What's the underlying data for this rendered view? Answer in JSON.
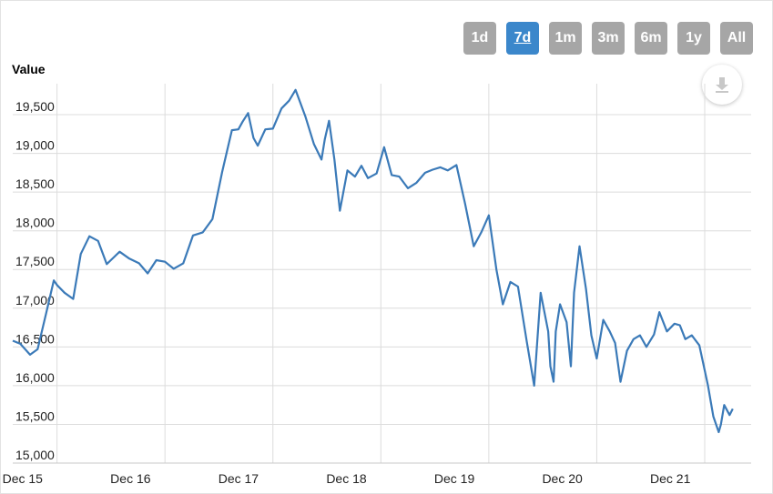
{
  "range_selector": {
    "buttons": [
      "1d",
      "7d",
      "1m",
      "3m",
      "6m",
      "1y",
      "All"
    ],
    "active": "7d",
    "active_color": "#3b87cb",
    "inactive_color": "#a6a6a6"
  },
  "export": {
    "icon": "download-icon"
  },
  "chart_data": {
    "type": "line",
    "title": "",
    "ylabel": "Value",
    "xlabel": "",
    "ylim": [
      15000,
      19900
    ],
    "yticks": [
      15000,
      15500,
      16000,
      16500,
      17000,
      17500,
      18000,
      18500,
      19000,
      19500
    ],
    "ytick_labels": [
      "15,000",
      "15,500",
      "16,000",
      "16,500",
      "17,000",
      "17,500",
      "18,000",
      "18,500",
      "19,000",
      "19,500"
    ],
    "xlim": [
      -0.41,
      6.43
    ],
    "xticks": [
      0,
      1,
      2,
      3,
      4,
      5,
      6
    ],
    "xtick_labels": [
      "Dec 15",
      "Dec 16",
      "Dec 17",
      "Dec 18",
      "Dec 19",
      "Dec 20",
      "Dec 21"
    ],
    "grid": true,
    "line_color": "#3b7ab8",
    "series": [
      {
        "x": [
          -0.41,
          -0.34,
          -0.25,
          -0.18,
          -0.1,
          -0.03,
          0.0,
          0.07,
          0.15,
          0.22,
          0.3,
          0.38,
          0.46,
          0.52,
          0.58,
          0.67,
          0.76,
          0.84,
          0.92,
          1.0,
          1.08,
          1.17,
          1.26,
          1.35,
          1.44,
          1.53,
          1.62,
          1.68,
          1.72,
          1.77,
          1.82,
          1.86,
          1.93,
          2.0,
          2.08,
          2.15,
          2.21,
          2.3,
          2.38,
          2.45,
          2.48,
          2.52,
          2.57,
          2.62,
          2.69,
          2.76,
          2.82,
          2.88,
          2.96,
          3.03,
          3.1,
          3.17,
          3.25,
          3.33,
          3.41,
          3.48,
          3.55,
          3.62,
          3.7,
          3.78,
          3.86,
          3.93,
          4.0,
          4.07,
          4.13,
          4.2,
          4.27,
          4.35,
          4.42,
          4.48,
          4.55,
          4.57,
          4.6,
          4.62,
          4.66,
          4.72,
          4.76,
          4.79,
          4.84,
          4.9,
          4.95,
          5.0,
          5.06,
          5.12,
          5.17,
          5.22,
          5.28,
          5.34,
          5.4,
          5.46,
          5.53,
          5.58,
          5.65,
          5.72,
          5.77,
          5.82,
          5.88,
          5.95,
          6.03,
          6.08,
          6.13,
          6.15,
          6.18,
          6.23,
          6.26
        ],
        "y": [
          16580,
          16540,
          16400,
          16470,
          16940,
          17360,
          17300,
          17200,
          17120,
          17700,
          17930,
          17870,
          17570,
          17650,
          17730,
          17640,
          17580,
          17450,
          17620,
          17600,
          17510,
          17580,
          17940,
          17980,
          18150,
          18760,
          19300,
          19310,
          19410,
          19520,
          19200,
          19100,
          19310,
          19320,
          19580,
          19680,
          19820,
          19480,
          19120,
          18920,
          19180,
          19420,
          18920,
          18260,
          18780,
          18700,
          18840,
          18680,
          18740,
          19080,
          18720,
          18700,
          18550,
          18620,
          18750,
          18790,
          18820,
          18780,
          18850,
          18350,
          17800,
          17980,
          18200,
          17500,
          17050,
          17340,
          17280,
          16580,
          16000,
          17200,
          16700,
          16250,
          16050,
          16700,
          17050,
          16820,
          16250,
          17200,
          17800,
          17250,
          16650,
          16350,
          16850,
          16700,
          16550,
          16050,
          16450,
          16600,
          16650,
          16500,
          16660,
          16950,
          16700,
          16800,
          16780,
          16600,
          16650,
          16520,
          16000,
          15600,
          15400,
          15500,
          15750,
          15620,
          15700
        ]
      }
    ]
  }
}
